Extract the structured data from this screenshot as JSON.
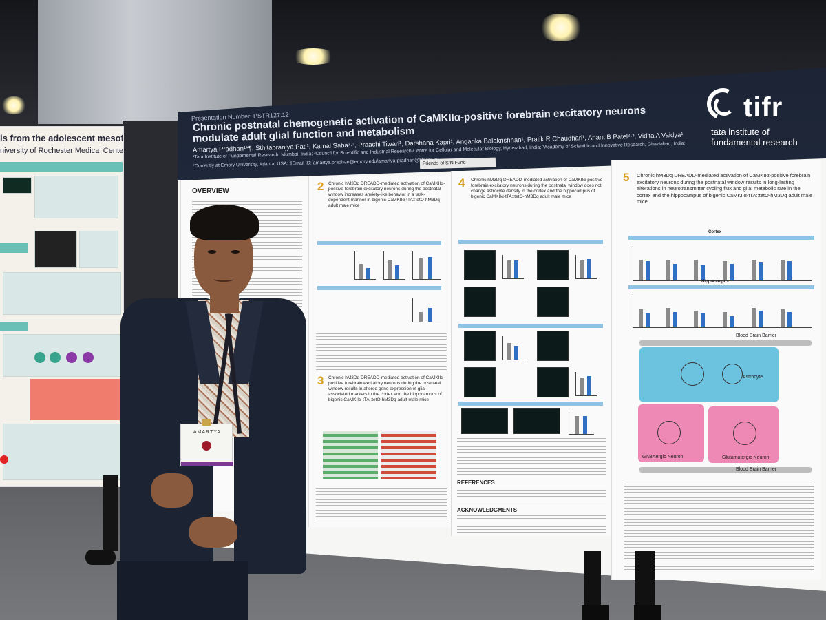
{
  "scene": {
    "description_tags": [
      "conference poster session",
      "presenter",
      "scientific poster"
    ]
  },
  "left_poster": {
    "title": "ls from the adolescent mesofrontal",
    "subtitle": "niversity of Rochester Medical Center"
  },
  "poster": {
    "presentation_number": "Presentation Number: PSTR127.12",
    "title_line1": "Chronic postnatal chemogenetic activation of CaMKIIα-positive forebrain excitatory neurons",
    "title_line2": "modulate adult glial function and metabolism",
    "authors": "Amartya Pradhan¹*¶, Sthitapranjya Pati¹, Kamal Saba²·³, Praachi Tiwari¹, Darshana Kapri¹, Angarika Balakrishnan¹, Pratik R Chaudhari¹, Anant B Patel²·³, Vidita A Vaidya¹",
    "affiliations": "¹Tata Institute of Fundamental Research, Mumbai, India; ²Council for Scientific and Industrial Research-Centre for Cellular and Molecular Biology, Hyderabad, India; ³Academy of Scientific and Innovative Research, Ghaziabad, India;",
    "email": "*Currently at Emory University, Atlanta, USA; ¶Email ID: amartya.pradhan@emory.edu/amartya.pradhan@tifr.res.in",
    "tag": "Friends of SfN Fund",
    "logo": {
      "wordmark": "tifr",
      "line1": "tata institute of",
      "line2": "fundamental research"
    },
    "sections": {
      "overview_title": "OVERVIEW",
      "s2_num": "2",
      "s2_text": "Chronic hM3Dq DREADD-mediated activation of CaMKIIα-positive forebrain excitatory neurons during the postnatal window increases anxiety-like behavior in a task-dependent manner in bigenic CaMKIIα-tTA::tetO-hM3Dq adult male mice",
      "s3_num": "3",
      "s3_text": "Chronic hM3Dq DREADD-mediated activation of CaMKIIα-positive forebrain excitatory neurons during the postnatal window results in altered gene expression of glia-associated markers in the cortex and the hippocampus of bigenic CaMKIIα-tTA::tetO-hM3Dq adult male mice",
      "s4_num": "4",
      "s4_text": "Chronic hM3Dq DREADD-mediated activation of CaMKIIα-positive forebrain excitatory neurons during the postnatal window does not change astrocyte density in the cortex and the hippocampus of bigenic CaMKIIα-tTA::tetO-hM3Dq adult male mice",
      "s5_num": "5",
      "s5_text": "Chronic hM3Dq DREADD-mediated activation of CaMKIIα-positive forebrain excitatory neurons during the postnatal window results in long-lasting alterations in neurotransmitter cycling flux and glial metabolic rate in the cortex and the hippocampus of bigenic CaMKIIα-tTA::tetO-hM3Dq adult male mice",
      "references": "REFERENCES",
      "acknowledgments": "ACKNOWLEDGMENTS",
      "diagram_labels": {
        "bbb_top": "Blood Brain Barrier",
        "bbb_bottom": "Blood Brain Barrier",
        "astrocyte": "Astrocyte",
        "gaba_neuron": "GABAergic Neuron",
        "glu_neuron": "Glutamatergic Neuron",
        "cortex": "Cortex",
        "hippocampus": "Hippocampus"
      }
    }
  },
  "badge": {
    "name": "AMARTYA"
  },
  "colors": {
    "poster_header": "#1c2435",
    "accent_gold": "#d9a01c",
    "chart_blue": "#2f6fc4",
    "chart_gray": "#8a8a8a",
    "astrocyte_blue": "#6cc3e0",
    "neuron_pink": "#ee88b4",
    "jacket": "#1c2333"
  }
}
